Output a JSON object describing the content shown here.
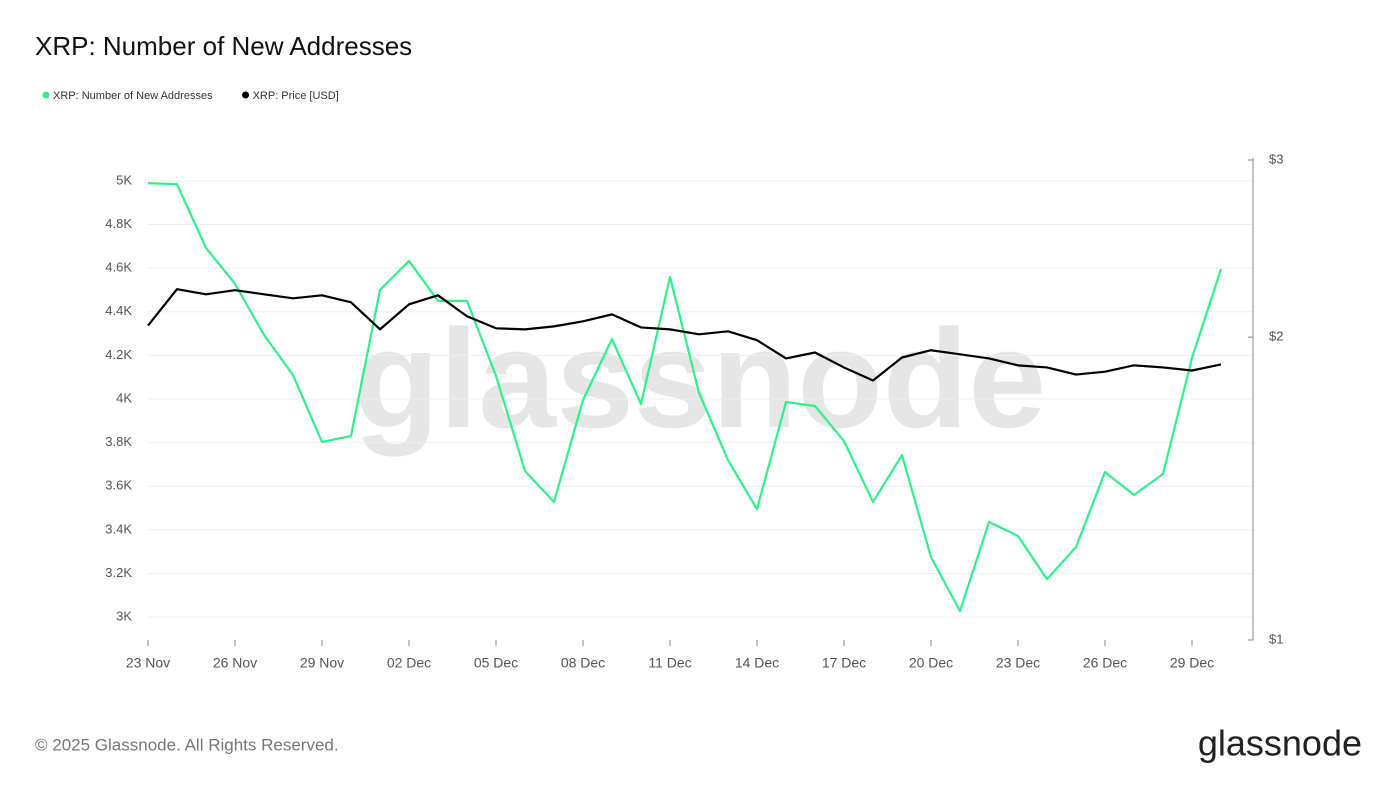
{
  "chart_data": {
    "type": "line",
    "title": "XRP: Number of New Addresses",
    "categories": [
      "23 Nov",
      null,
      null,
      "26 Nov",
      null,
      null,
      "29 Nov",
      null,
      null,
      "02 Dec",
      null,
      null,
      "05 Dec",
      null,
      null,
      "08 Dec",
      null,
      null,
      "11 Dec",
      null,
      null,
      "14 Dec",
      null,
      null,
      "17 Dec",
      null,
      null,
      "20 Dec",
      null,
      null,
      "23 Dec",
      null,
      null,
      "26 Dec",
      null,
      null,
      "29 Dec",
      null
    ],
    "series": [
      {
        "name": "XRP: Number of New Addresses",
        "color": "#2ff08a",
        "values": [
          4990,
          4985,
          4693,
          4528,
          4294,
          4110,
          3803,
          3830,
          4500,
          4633,
          4450,
          4450,
          4106,
          3670,
          3528,
          3995,
          4275,
          3977,
          4560,
          4028,
          3720,
          3495,
          3986,
          3968,
          3807,
          3528,
          3743,
          3275,
          3028,
          3436,
          3372,
          3174,
          3321,
          3665,
          3560,
          3656,
          4188,
          4596
        ]
      },
      {
        "name": "XRP: Price [USD]",
        "color": "#000000",
        "axis": "y2",
        "values": [
          2.054,
          2.232,
          2.206,
          2.227,
          2.206,
          2.186,
          2.201,
          2.166,
          2.036,
          2.156,
          2.201,
          2.098,
          2.041,
          2.036,
          2.05,
          2.074,
          2.107,
          2.045,
          2.036,
          2.013,
          2.027,
          1.986,
          1.905,
          1.931,
          1.866,
          1.811,
          1.909,
          1.941,
          1.923,
          1.905,
          1.875,
          1.866,
          1.836,
          1.848,
          1.875,
          1.866,
          1.853,
          1.879
        ]
      }
    ],
    "ylim": [
      2895,
      5096
    ],
    "yticks": [
      {
        "value": 3000,
        "label": "3K"
      },
      {
        "value": 3200,
        "label": "3.2K"
      },
      {
        "value": 3400,
        "label": "3.4K"
      },
      {
        "value": 3600,
        "label": "3.6K"
      },
      {
        "value": 3800,
        "label": "3.8K"
      },
      {
        "value": 4000,
        "label": "4K"
      },
      {
        "value": 4200,
        "label": "4.2K"
      },
      {
        "value": 4400,
        "label": "4.4K"
      },
      {
        "value": 4600,
        "label": "4.6K"
      },
      {
        "value": 4800,
        "label": "4.8K"
      },
      {
        "value": 5000,
        "label": "5K"
      }
    ],
    "y2lim": [
      1,
      3
    ],
    "y2scale": "log",
    "y2ticks": [
      {
        "value": 1,
        "label": "$1"
      },
      {
        "value": 2,
        "label": "$2"
      },
      {
        "value": 3,
        "label": "$3"
      }
    ],
    "grid": true,
    "legend": "top-left",
    "watermark": "glassnode"
  },
  "footer": {
    "copyright": "© 2025 Glassnode. All Rights Reserved.",
    "logo": "glassnode"
  }
}
